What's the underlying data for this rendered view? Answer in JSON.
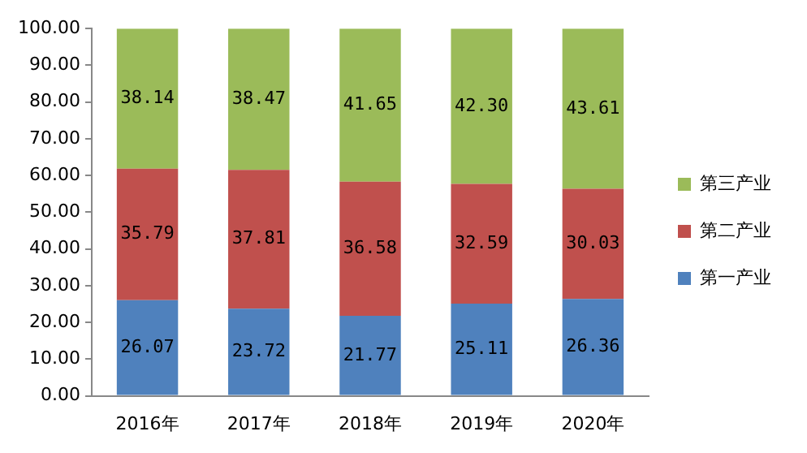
{
  "chart_data": {
    "type": "bar",
    "stacked": true,
    "categories": [
      "2016年",
      "2017年",
      "2018年",
      "2019年",
      "2020年"
    ],
    "series": [
      {
        "name": "第一产业",
        "color": "#4f81bd",
        "values": [
          26.07,
          23.72,
          21.77,
          25.11,
          26.36
        ],
        "value_labels": [
          "26.07",
          "23.72",
          "21.77",
          "25.11",
          "26.36"
        ]
      },
      {
        "name": "第二产业",
        "color": "#c0504d",
        "values": [
          35.79,
          37.81,
          36.58,
          32.59,
          30.03
        ],
        "value_labels": [
          "35.79",
          "37.81",
          "36.58",
          "32.59",
          "30.03"
        ]
      },
      {
        "name": "第三产业",
        "color": "#9bbb59",
        "values": [
          38.14,
          38.47,
          41.65,
          42.3,
          43.61
        ],
        "value_labels": [
          "38.14",
          "38.47",
          "41.65",
          "42.30",
          "43.61"
        ]
      }
    ],
    "ylim": [
      0,
      100
    ],
    "yticks": [
      {
        "value": 0,
        "label": "0.00"
      },
      {
        "value": 10,
        "label": "10.00"
      },
      {
        "value": 20,
        "label": "20.00"
      },
      {
        "value": 30,
        "label": "30.00"
      },
      {
        "value": 40,
        "label": "40.00"
      },
      {
        "value": 50,
        "label": "50.00"
      },
      {
        "value": 60,
        "label": "60.00"
      },
      {
        "value": 70,
        "label": "70.00"
      },
      {
        "value": 80,
        "label": "80.00"
      },
      {
        "value": 90,
        "label": "90.00"
      },
      {
        "value": 100,
        "label": "100.00"
      }
    ],
    "grid": false,
    "legend": "right"
  }
}
